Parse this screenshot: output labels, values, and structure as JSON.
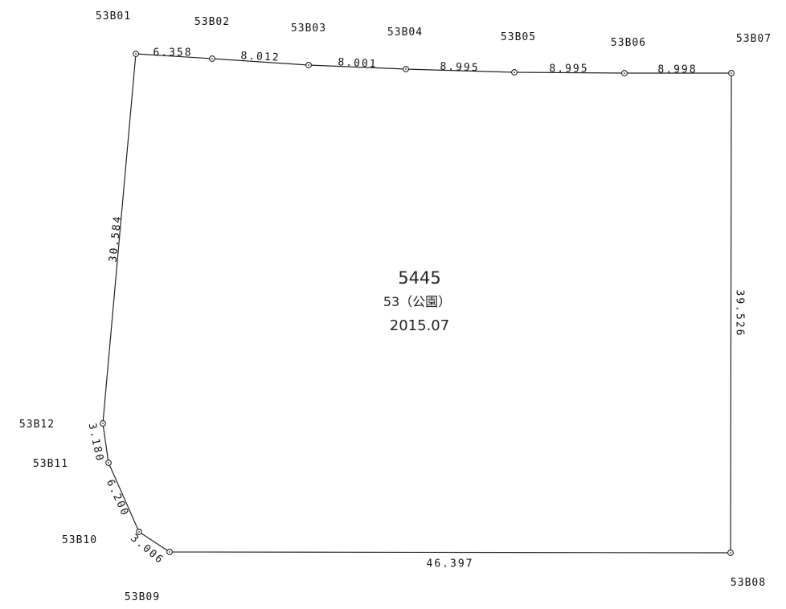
{
  "points": [
    {
      "id": "53B01"
    },
    {
      "id": "53B02"
    },
    {
      "id": "53B03"
    },
    {
      "id": "53B04"
    },
    {
      "id": "53B05"
    },
    {
      "id": "53B06"
    },
    {
      "id": "53B07"
    },
    {
      "id": "53B08"
    },
    {
      "id": "53B09"
    },
    {
      "id": "53B10"
    },
    {
      "id": "53B11"
    },
    {
      "id": "53B12"
    }
  ],
  "edges": [
    {
      "from": "53B01",
      "to": "53B02",
      "length": "6.358"
    },
    {
      "from": "53B02",
      "to": "53B03",
      "length": "8.012"
    },
    {
      "from": "53B03",
      "to": "53B04",
      "length": "8.001"
    },
    {
      "from": "53B04",
      "to": "53B05",
      "length": "8.995"
    },
    {
      "from": "53B05",
      "to": "53B06",
      "length": "8.995"
    },
    {
      "from": "53B06",
      "to": "53B07",
      "length": "8.998"
    },
    {
      "from": "53B07",
      "to": "53B08",
      "length": "39.526"
    },
    {
      "from": "53B08",
      "to": "53B09",
      "length": "46.397"
    },
    {
      "from": "53B09",
      "to": "53B10",
      "length": "3.006"
    },
    {
      "from": "53B10",
      "to": "53B11",
      "length": "6.200"
    },
    {
      "from": "53B11",
      "to": "53B12",
      "length": "3.180"
    },
    {
      "from": "53B12",
      "to": "53B01",
      "length": "30.584"
    }
  ],
  "parcel": {
    "number": "5445",
    "use": "53（公園）",
    "date": "2015.07"
  },
  "colors": {
    "line": "#222222",
    "text": "#111111"
  }
}
